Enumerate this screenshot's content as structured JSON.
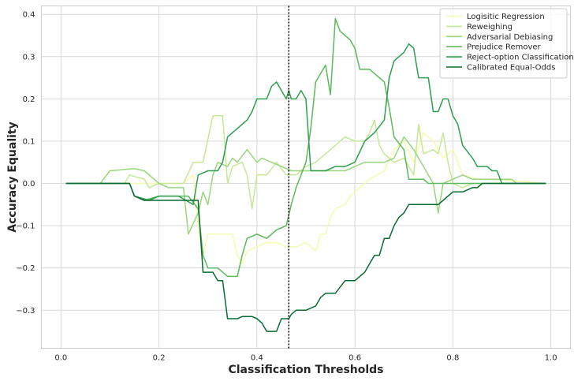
{
  "chart_data": {
    "type": "line",
    "xlabel": "Classification Thresholds",
    "ylabel": "Accuracy Equality",
    "xlim": [
      -0.04,
      1.04
    ],
    "ylim": [
      -0.39,
      0.42
    ],
    "xticks": [
      0.0,
      0.2,
      0.4,
      0.6,
      0.8,
      1.0
    ],
    "xtick_labels": [
      "0.0",
      "0.2",
      "0.4",
      "0.6",
      "0.8",
      "1.0"
    ],
    "yticks": [
      -0.3,
      -0.2,
      -0.1,
      0.0,
      0.1,
      0.2,
      0.3,
      0.4
    ],
    "ytick_labels": [
      "−0.3",
      "−0.2",
      "−0.1",
      "0.0",
      "0.1",
      "0.2",
      "0.3",
      "0.4"
    ],
    "grid": true,
    "legend_position": "top-right",
    "vline": {
      "x": 0.465,
      "style": "dotted",
      "color": "#000000"
    },
    "series": [
      {
        "name": "Logisitic Regression",
        "color": "#f5fcaf",
        "points": [
          [
            0.01,
            0
          ],
          [
            0.25,
            0
          ],
          [
            0.27,
            0.02
          ],
          [
            0.28,
            -0.1
          ],
          [
            0.29,
            -0.17
          ],
          [
            0.3,
            -0.12
          ],
          [
            0.35,
            -0.12
          ],
          [
            0.36,
            -0.17
          ],
          [
            0.37,
            -0.19
          ],
          [
            0.38,
            -0.16
          ],
          [
            0.4,
            -0.15
          ],
          [
            0.42,
            -0.14
          ],
          [
            0.44,
            -0.14
          ],
          [
            0.46,
            -0.15
          ],
          [
            0.48,
            -0.15
          ],
          [
            0.5,
            -0.14
          ],
          [
            0.52,
            -0.16
          ],
          [
            0.53,
            -0.12
          ],
          [
            0.54,
            -0.12
          ],
          [
            0.55,
            -0.08
          ],
          [
            0.56,
            -0.06
          ],
          [
            0.58,
            -0.05
          ],
          [
            0.59,
            -0.03
          ],
          [
            0.6,
            -0.02
          ],
          [
            0.62,
            0.0
          ],
          [
            0.63,
            0.01
          ],
          [
            0.66,
            0.03
          ],
          [
            0.68,
            0.08
          ],
          [
            0.7,
            0.1
          ],
          [
            0.72,
            0.05
          ],
          [
            0.74,
            0.12
          ],
          [
            0.76,
            0.1
          ],
          [
            0.78,
            0.06
          ],
          [
            0.8,
            0.08
          ],
          [
            0.82,
            0.02
          ],
          [
            0.85,
            0.01
          ],
          [
            0.88,
            0.01
          ],
          [
            0.99,
            0
          ]
        ]
      },
      {
        "name": "Reweighing",
        "color": "#c5e896",
        "points": [
          [
            0.01,
            0
          ],
          [
            0.13,
            0
          ],
          [
            0.14,
            0.02
          ],
          [
            0.17,
            0.01
          ],
          [
            0.18,
            -0.01
          ],
          [
            0.2,
            0
          ],
          [
            0.25,
            0
          ],
          [
            0.27,
            0.05
          ],
          [
            0.29,
            0.05
          ],
          [
            0.31,
            0.16
          ],
          [
            0.33,
            0.16
          ],
          [
            0.34,
            0
          ],
          [
            0.35,
            0.04
          ],
          [
            0.37,
            0.05
          ],
          [
            0.38,
            0.02
          ],
          [
            0.39,
            -0.06
          ],
          [
            0.4,
            0.02
          ],
          [
            0.42,
            0.02
          ],
          [
            0.44,
            0.05
          ],
          [
            0.46,
            0.02
          ],
          [
            0.48,
            0.02
          ],
          [
            0.5,
            0.04
          ],
          [
            0.52,
            0.05
          ],
          [
            0.55,
            0.08
          ],
          [
            0.58,
            0.11
          ],
          [
            0.6,
            0.1
          ],
          [
            0.62,
            0.1
          ],
          [
            0.63,
            0.12
          ],
          [
            0.64,
            0.15
          ],
          [
            0.65,
            0.09
          ],
          [
            0.66,
            0.07
          ],
          [
            0.68,
            0.05
          ],
          [
            0.7,
            0.06
          ],
          [
            0.72,
            0.02
          ],
          [
            0.73,
            0.14
          ],
          [
            0.74,
            0.07
          ],
          [
            0.76,
            0.08
          ],
          [
            0.77,
            0.07
          ],
          [
            0.78,
            0.12
          ],
          [
            0.79,
            0.05
          ],
          [
            0.8,
            0.0
          ],
          [
            0.82,
            -0.01
          ],
          [
            0.84,
            0.0
          ],
          [
            0.87,
            0.0
          ],
          [
            0.99,
            0
          ]
        ]
      },
      {
        "name": "Adversarial Debiasing",
        "color": "#98d67c",
        "points": [
          [
            0.01,
            0
          ],
          [
            0.08,
            0
          ],
          [
            0.1,
            0.03
          ],
          [
            0.15,
            0.035
          ],
          [
            0.17,
            0.03
          ],
          [
            0.2,
            0
          ],
          [
            0.22,
            -0.01
          ],
          [
            0.25,
            -0.01
          ],
          [
            0.26,
            -0.12
          ],
          [
            0.28,
            -0.07
          ],
          [
            0.29,
            -0.02
          ],
          [
            0.3,
            -0.05
          ],
          [
            0.31,
            0.02
          ],
          [
            0.32,
            0.05
          ],
          [
            0.34,
            0.04
          ],
          [
            0.35,
            0.06
          ],
          [
            0.36,
            0.05
          ],
          [
            0.38,
            0.08
          ],
          [
            0.4,
            0.05
          ],
          [
            0.41,
            0.06
          ],
          [
            0.43,
            0.05
          ],
          [
            0.45,
            0.04
          ],
          [
            0.47,
            0.03
          ],
          [
            0.5,
            0.03
          ],
          [
            0.52,
            0.03
          ],
          [
            0.54,
            0.03
          ],
          [
            0.56,
            0.03
          ],
          [
            0.58,
            0.03
          ],
          [
            0.6,
            0.04
          ],
          [
            0.62,
            0.05
          ],
          [
            0.64,
            0.05
          ],
          [
            0.66,
            0.05
          ],
          [
            0.68,
            0.06
          ],
          [
            0.7,
            0.11
          ],
          [
            0.72,
            0.08
          ],
          [
            0.74,
            0.04
          ],
          [
            0.76,
            0.0
          ],
          [
            0.77,
            -0.07
          ],
          [
            0.78,
            0.0
          ],
          [
            0.8,
            0.01
          ],
          [
            0.82,
            0.02
          ],
          [
            0.84,
            0.01
          ],
          [
            0.88,
            0.01
          ],
          [
            0.92,
            0.01
          ],
          [
            0.93,
            0
          ],
          [
            0.99,
            0
          ]
        ]
      },
      {
        "name": "Prejudice Remover",
        "color": "#5cb85c",
        "points": [
          [
            0.01,
            0
          ],
          [
            0.14,
            0
          ],
          [
            0.15,
            -0.03
          ],
          [
            0.17,
            -0.04
          ],
          [
            0.2,
            -0.03
          ],
          [
            0.26,
            -0.03
          ],
          [
            0.28,
            -0.06
          ],
          [
            0.29,
            -0.17
          ],
          [
            0.3,
            -0.2
          ],
          [
            0.32,
            -0.2
          ],
          [
            0.34,
            -0.22
          ],
          [
            0.36,
            -0.22
          ],
          [
            0.37,
            -0.17
          ],
          [
            0.38,
            -0.13
          ],
          [
            0.4,
            -0.12
          ],
          [
            0.42,
            -0.13
          ],
          [
            0.44,
            -0.11
          ],
          [
            0.46,
            -0.1
          ],
          [
            0.47,
            -0.05
          ],
          [
            0.48,
            -0.01
          ],
          [
            0.5,
            0.05
          ],
          [
            0.51,
            0.13
          ],
          [
            0.52,
            0.24
          ],
          [
            0.53,
            0.26
          ],
          [
            0.54,
            0.28
          ],
          [
            0.55,
            0.21
          ],
          [
            0.56,
            0.39
          ],
          [
            0.57,
            0.36
          ],
          [
            0.58,
            0.35
          ],
          [
            0.59,
            0.34
          ],
          [
            0.6,
            0.32
          ],
          [
            0.61,
            0.27
          ],
          [
            0.63,
            0.27
          ],
          [
            0.64,
            0.26
          ],
          [
            0.66,
            0.24
          ],
          [
            0.67,
            0.18
          ],
          [
            0.68,
            0.11
          ],
          [
            0.7,
            0.08
          ],
          [
            0.71,
            0.01
          ],
          [
            0.72,
            0.01
          ],
          [
            0.74,
            0.01
          ],
          [
            0.75,
            0.0
          ],
          [
            0.99,
            0
          ]
        ]
      },
      {
        "name": "Reject-option Classification",
        "color": "#2e9e4f",
        "points": [
          [
            0.01,
            0
          ],
          [
            0.14,
            0
          ],
          [
            0.15,
            -0.03
          ],
          [
            0.18,
            -0.04
          ],
          [
            0.2,
            -0.03
          ],
          [
            0.24,
            -0.03
          ],
          [
            0.27,
            -0.05
          ],
          [
            0.28,
            0.02
          ],
          [
            0.3,
            0.03
          ],
          [
            0.32,
            0.03
          ],
          [
            0.33,
            0.05
          ],
          [
            0.34,
            0.11
          ],
          [
            0.36,
            0.13
          ],
          [
            0.37,
            0.14
          ],
          [
            0.38,
            0.15
          ],
          [
            0.39,
            0.17
          ],
          [
            0.4,
            0.2
          ],
          [
            0.42,
            0.2
          ],
          [
            0.43,
            0.23
          ],
          [
            0.44,
            0.24
          ],
          [
            0.45,
            0.22
          ],
          [
            0.46,
            0.2
          ],
          [
            0.465,
            0.22
          ],
          [
            0.47,
            0.2
          ],
          [
            0.48,
            0.2
          ],
          [
            0.49,
            0.22
          ],
          [
            0.5,
            0.2
          ],
          [
            0.51,
            0.03
          ],
          [
            0.52,
            0.03
          ],
          [
            0.54,
            0.03
          ],
          [
            0.56,
            0.04
          ],
          [
            0.57,
            0.04
          ],
          [
            0.58,
            0.04
          ],
          [
            0.6,
            0.05
          ],
          [
            0.62,
            0.1
          ],
          [
            0.64,
            0.12
          ],
          [
            0.66,
            0.15
          ],
          [
            0.67,
            0.25
          ],
          [
            0.68,
            0.29
          ],
          [
            0.7,
            0.31
          ],
          [
            0.71,
            0.33
          ],
          [
            0.72,
            0.32
          ],
          [
            0.73,
            0.25
          ],
          [
            0.75,
            0.25
          ],
          [
            0.76,
            0.17
          ],
          [
            0.77,
            0.17
          ],
          [
            0.78,
            0.2
          ],
          [
            0.79,
            0.2
          ],
          [
            0.8,
            0.16
          ],
          [
            0.81,
            0.14
          ],
          [
            0.82,
            0.09
          ],
          [
            0.84,
            0.06
          ],
          [
            0.85,
            0.04
          ],
          [
            0.87,
            0.04
          ],
          [
            0.88,
            0.03
          ],
          [
            0.89,
            0.03
          ],
          [
            0.9,
            0.0
          ],
          [
            0.99,
            0
          ]
        ]
      },
      {
        "name": "Calibrated Equal-Odds",
        "color": "#0a6b32",
        "points": [
          [
            0.01,
            0
          ],
          [
            0.14,
            0
          ],
          [
            0.15,
            -0.03
          ],
          [
            0.17,
            -0.04
          ],
          [
            0.28,
            -0.04
          ],
          [
            0.29,
            -0.21
          ],
          [
            0.31,
            -0.21
          ],
          [
            0.32,
            -0.23
          ],
          [
            0.33,
            -0.23
          ],
          [
            0.34,
            -0.32
          ],
          [
            0.36,
            -0.32
          ],
          [
            0.37,
            -0.315
          ],
          [
            0.38,
            -0.315
          ],
          [
            0.39,
            -0.315
          ],
          [
            0.4,
            -0.32
          ],
          [
            0.41,
            -0.33
          ],
          [
            0.42,
            -0.35
          ],
          [
            0.44,
            -0.35
          ],
          [
            0.45,
            -0.32
          ],
          [
            0.465,
            -0.32
          ],
          [
            0.47,
            -0.31
          ],
          [
            0.48,
            -0.3
          ],
          [
            0.5,
            -0.3
          ],
          [
            0.52,
            -0.29
          ],
          [
            0.53,
            -0.27
          ],
          [
            0.54,
            -0.26
          ],
          [
            0.56,
            -0.26
          ],
          [
            0.58,
            -0.23
          ],
          [
            0.6,
            -0.23
          ],
          [
            0.62,
            -0.21
          ],
          [
            0.63,
            -0.19
          ],
          [
            0.64,
            -0.17
          ],
          [
            0.65,
            -0.17
          ],
          [
            0.66,
            -0.13
          ],
          [
            0.67,
            -0.13
          ],
          [
            0.68,
            -0.1
          ],
          [
            0.69,
            -0.08
          ],
          [
            0.7,
            -0.07
          ],
          [
            0.71,
            -0.05
          ],
          [
            0.73,
            -0.05
          ],
          [
            0.74,
            -0.05
          ],
          [
            0.76,
            -0.05
          ],
          [
            0.77,
            -0.05
          ],
          [
            0.78,
            -0.04
          ],
          [
            0.79,
            -0.03
          ],
          [
            0.8,
            -0.02
          ],
          [
            0.82,
            -0.02
          ],
          [
            0.84,
            -0.01
          ],
          [
            0.85,
            -0.01
          ],
          [
            0.86,
            0.0
          ],
          [
            0.99,
            0
          ]
        ]
      }
    ]
  }
}
